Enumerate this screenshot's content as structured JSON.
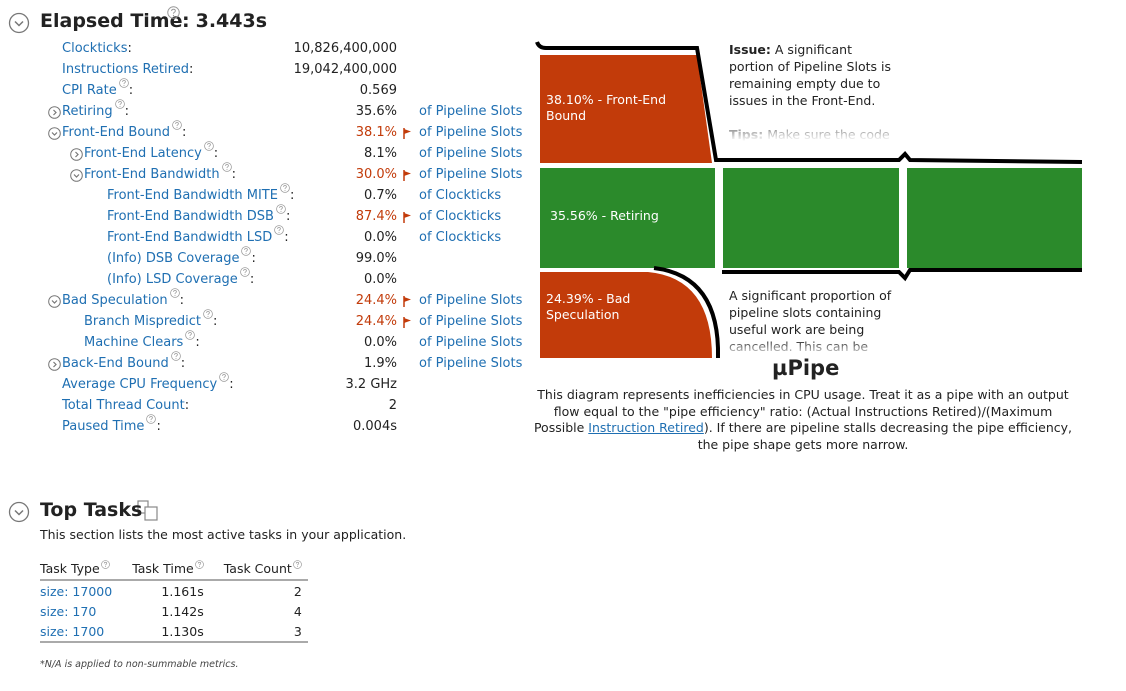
{
  "header": {
    "title": "Elapsed Time",
    "value": "3.443s",
    "help": true,
    "expanded": true
  },
  "metrics": [
    {
      "label": "Clockticks",
      "value": "10,826,400,000"
    },
    {
      "label": "Instructions Retired",
      "value": "19,042,400,000"
    },
    {
      "label": "CPI Rate",
      "value": "0.569",
      "help": true
    },
    {
      "label": "Retiring",
      "value": "35.6%",
      "unit": "of Pipeline Slots",
      "help": true,
      "expanded": false
    },
    {
      "label": "Front-End Bound",
      "value": "38.1%",
      "unit": "of Pipeline Slots",
      "help": true,
      "flagged": true,
      "expanded": true,
      "children": [
        {
          "label": "Front-End Latency",
          "value": "8.1%",
          "unit": "of Pipeline Slots",
          "help": true,
          "expanded": false
        },
        {
          "label": "Front-End Bandwidth",
          "value": "30.0%",
          "unit": "of Pipeline Slots",
          "help": true,
          "flagged": true,
          "expanded": true,
          "children": [
            {
              "label": "Front-End Bandwidth MITE",
              "value": "0.7%",
              "unit": "of Clockticks",
              "help": true
            },
            {
              "label": "Front-End Bandwidth DSB",
              "value": "87.4%",
              "unit": "of Clockticks",
              "help": true,
              "flagged": true
            },
            {
              "label": "Front-End Bandwidth LSD",
              "value": "0.0%",
              "unit": "of Clockticks",
              "help": true
            },
            {
              "label": "(Info) DSB Coverage",
              "value": "99.0%",
              "help": true
            },
            {
              "label": "(Info) LSD Coverage",
              "value": "0.0%",
              "help": true
            }
          ]
        }
      ]
    },
    {
      "label": "Bad Speculation",
      "value": "24.4%",
      "unit": "of Pipeline Slots",
      "help": true,
      "flagged": true,
      "expanded": true,
      "children": [
        {
          "label": "Branch Mispredict",
          "value": "24.4%",
          "unit": "of Pipeline Slots",
          "help": true,
          "flagged": true
        },
        {
          "label": "Machine Clears",
          "value": "0.0%",
          "unit": "of Pipeline Slots",
          "help": true
        }
      ]
    },
    {
      "label": "Back-End Bound",
      "value": "1.9%",
      "unit": "of Pipeline Slots",
      "help": true,
      "expanded": false
    },
    {
      "label": "Average CPU Frequency",
      "value": "3.2 GHz",
      "help": true
    },
    {
      "label": "Total Thread Count",
      "value": "2"
    },
    {
      "label": "Paused Time",
      "value": "0.004s",
      "help": true
    }
  ],
  "pipe": {
    "front_end": "38.10% - Front-End Bound",
    "retiring": "35.56% - Retiring",
    "bad_speculation": "24.39% - Bad Speculation",
    "issue_front_end": {
      "label": "Issue:",
      "text": "A significant portion of Pipeline Slots is remaining empty due to issues in the Front-End.",
      "tips_label": "Tips:",
      "tips_text": "Make sure the code"
    },
    "issue_bad_speculation": "A significant proportion of pipeline slots containing useful work are being cancelled. This can be",
    "title": "µPipe",
    "description": {
      "before": "This diagram represents inefficiencies in CPU usage. Treat it as a pipe with an output flow equal to the \"pipe efficiency\" ratio: (Actual Instructions Retired)/(Maximum Possible ",
      "link": "Instruction Retired",
      "after": "). If there are pipeline stalls decreasing the pipe efficiency, the pipe shape gets more narrow."
    }
  },
  "top_tasks": {
    "title": "Top Tasks",
    "description": "This section lists the most active tasks in your application.",
    "columns": [
      "Task Type",
      "Task Time",
      "Task Count"
    ],
    "rows": [
      [
        "size: 17000",
        "1.161s",
        "2"
      ],
      [
        "size: 170",
        "1.142s",
        "4"
      ],
      [
        "size: 1700",
        "1.130s",
        "3"
      ]
    ],
    "footnote": "*N/A is applied to non-summable metrics."
  }
}
